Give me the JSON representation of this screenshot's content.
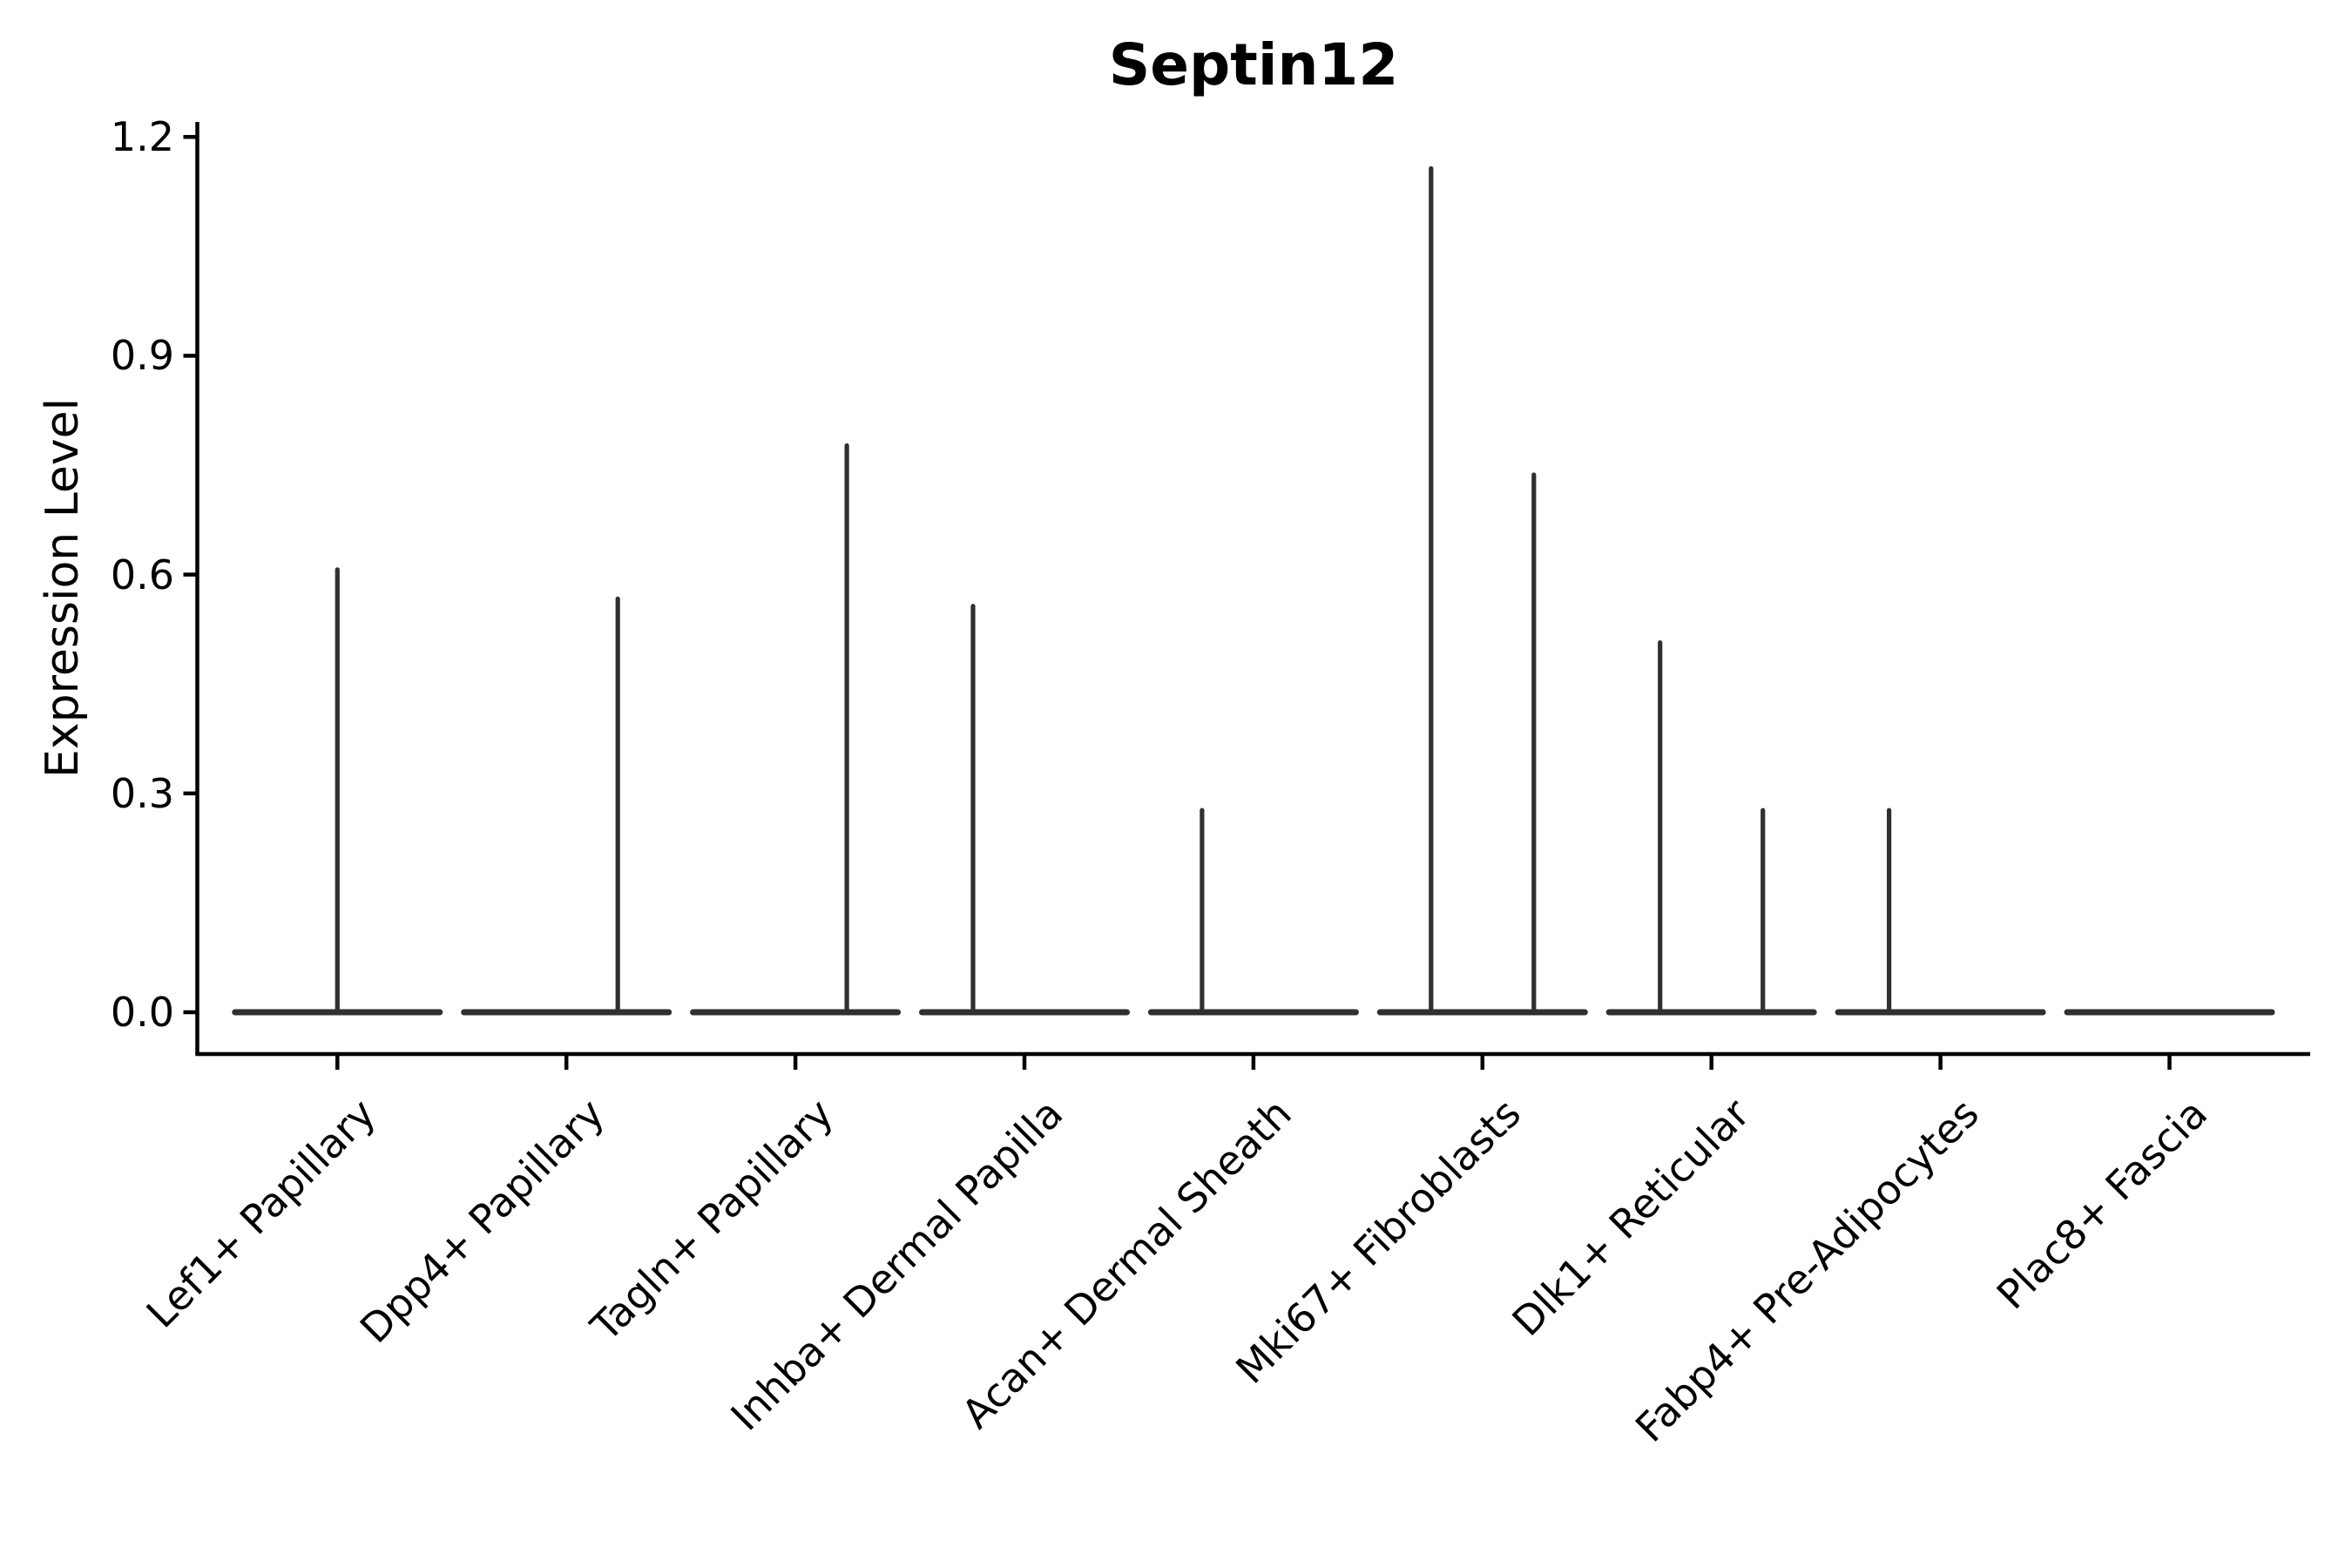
{
  "title": "Septin12",
  "colors": {
    "background": "#ffffff",
    "axis": "#000000",
    "text": "#000000",
    "violin": "#303030"
  },
  "y_axis": {
    "label": "Expression Level",
    "tick_labels": [
      "0.0",
      "0.3",
      "0.6",
      "0.9",
      "1.2"
    ]
  },
  "chart_data": {
    "type": "violin",
    "title": "Septin12",
    "xlabel": "",
    "ylabel": "Expression Level",
    "ylim": [
      0,
      1.2
    ],
    "y_ticks": [
      0.0,
      0.3,
      0.6,
      0.9,
      1.2
    ],
    "grid": false,
    "legend": "none",
    "style": "collapsed violins: wide flat base at 0 with thin max-value spikes, dark gray on white",
    "categories": [
      "Lef1+ Papillary",
      "Dpp4+ Papillary",
      "Tagln+ Papillary",
      "Inhba+ Dermal Papilla",
      "Acan+ Dermal Sheath",
      "Mki67+ Fibroblasts",
      "Dlk1+ Reticular",
      "Fabp4+ Pre-Adipocytes",
      "Plac8+ Fascia"
    ],
    "violins": [
      {
        "category": "Lef1+ Papillary",
        "base_value": 0.0,
        "spikes": [
          {
            "position": "center",
            "max": 0.61
          }
        ]
      },
      {
        "category": "Dpp4+ Papillary",
        "base_value": 0.0,
        "spikes": [
          {
            "position": "right",
            "max": 0.57
          }
        ]
      },
      {
        "category": "Tagln+ Papillary",
        "base_value": 0.0,
        "spikes": [
          {
            "position": "right",
            "max": 0.78
          }
        ]
      },
      {
        "category": "Inhba+ Dermal Papilla",
        "base_value": 0.0,
        "spikes": [
          {
            "position": "left",
            "max": 0.56
          }
        ]
      },
      {
        "category": "Acan+ Dermal Sheath",
        "base_value": 0.0,
        "spikes": [
          {
            "position": "left",
            "max": 0.28
          }
        ]
      },
      {
        "category": "Mki67+ Fibroblasts",
        "base_value": 0.0,
        "spikes": [
          {
            "position": "left",
            "max": 1.16
          },
          {
            "position": "right",
            "max": 0.74
          }
        ]
      },
      {
        "category": "Dlk1+ Reticular",
        "base_value": 0.0,
        "spikes": [
          {
            "position": "left",
            "max": 0.51
          },
          {
            "position": "right",
            "max": 0.28
          }
        ]
      },
      {
        "category": "Fabp4+ Pre-Adipocytes",
        "base_value": 0.0,
        "spikes": [
          {
            "position": "left",
            "max": 0.28
          }
        ]
      },
      {
        "category": "Plac8+ Fascia",
        "base_value": 0.0,
        "spikes": []
      }
    ]
  }
}
